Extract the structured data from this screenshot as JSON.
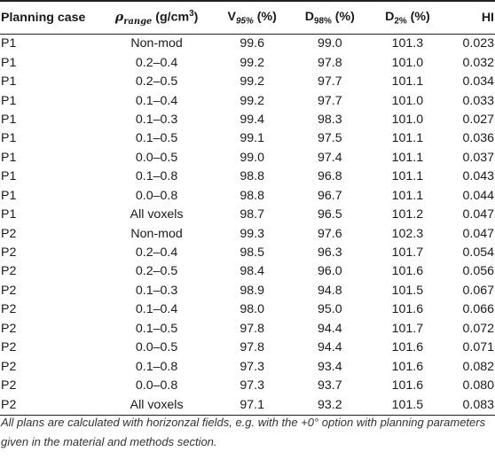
{
  "header": {
    "planning_case": "Planning case",
    "rho_symbol": "ρ",
    "rho_sub": "range",
    "rho_unit": " (g/cm",
    "rho_unit_sup": "3",
    "rho_unit_close": ")",
    "v_main": "V",
    "v_sub": "95%",
    "v_unit": " (%)",
    "d98_main": "D",
    "d98_sub": "98%",
    "d98_unit": " (%)",
    "d2_main": "D",
    "d2_sub": "2%",
    "d2_unit": " (%)",
    "hi": "HI"
  },
  "rows": [
    [
      "P1",
      "Non-mod",
      "99.6",
      "99.0",
      "101.3",
      "0.023"
    ],
    [
      "P1",
      "0.2–0.4",
      "99.2",
      "97.8",
      "101.0",
      "0.032"
    ],
    [
      "P1",
      "0.2–0.5",
      "99.2",
      "97.7",
      "101.1",
      "0.034"
    ],
    [
      "P1",
      "0.1–0.4",
      "99.2",
      "97.7",
      "101.0",
      "0.033"
    ],
    [
      "P1",
      "0.1–0.3",
      "99.4",
      "98.3",
      "101.0",
      "0.027"
    ],
    [
      "P1",
      "0.1–0.5",
      "99.1",
      "97.5",
      "101.1",
      "0.036"
    ],
    [
      "P1",
      "0.0–0.5",
      "99.0",
      "97.4",
      "101.1",
      "0.037"
    ],
    [
      "P1",
      "0.1–0.8",
      "98.8",
      "96.8",
      "101.1",
      "0.043"
    ],
    [
      "P1",
      "0.0–0.8",
      "98.8",
      "96.7",
      "101.1",
      "0.044"
    ],
    [
      "P1",
      "All voxels",
      "98.7",
      "96.5",
      "101.2",
      "0.047"
    ],
    [
      "P2",
      "Non-mod",
      "99.3",
      "97.6",
      "102.3",
      "0.047"
    ],
    [
      "P2",
      "0.2–0.4",
      "98.5",
      "96.3",
      "101.7",
      "0.054"
    ],
    [
      "P2",
      "0.2–0.5",
      "98.4",
      "96.0",
      "101.6",
      "0.056"
    ],
    [
      "P2",
      "0.1–0.3",
      "98.9",
      "94.8",
      "101.5",
      "0.067"
    ],
    [
      "P2",
      "0.1–0.4",
      "98.0",
      "95.0",
      "101.6",
      "0.066"
    ],
    [
      "P2",
      "0.1–0.5",
      "97.8",
      "94.4",
      "101.7",
      "0.072"
    ],
    [
      "P2",
      "0.0–0.5",
      "97.8",
      "94.4",
      "101.6",
      "0.071"
    ],
    [
      "P2",
      "0.1–0.8",
      "97.3",
      "93.4",
      "101.6",
      "0.082"
    ],
    [
      "P2",
      "0.0–0.8",
      "97.3",
      "93.7",
      "101.6",
      "0.080"
    ],
    [
      "P2",
      "All voxels",
      "97.1",
      "93.2",
      "101.5",
      "0.083"
    ]
  ],
  "footnote": "All plans are calculated with horizonzal fields, e.g. with the +0° option with planning parameters given in the material and methods section."
}
